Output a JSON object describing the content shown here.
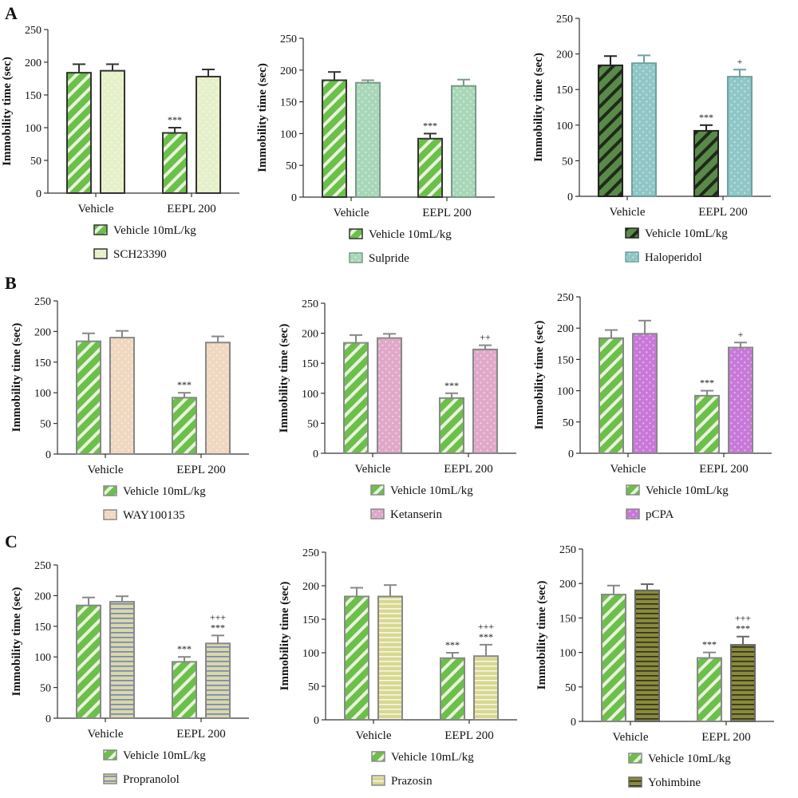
{
  "chart_data": [
    {
      "row": "A",
      "type": "bar",
      "ylabel": "Immobility time (sec)",
      "ylim": [
        0,
        250
      ],
      "categories": [
        "Vehicle",
        "EEPL 200"
      ],
      "series": [
        {
          "name": "Vehicle 10mL/kg",
          "values": [
            184,
            92
          ],
          "errors": [
            13,
            8
          ],
          "fill": "#6cbf4a",
          "stroke": "#333333",
          "pattern": "diag-light"
        },
        {
          "name": "SCH23390",
          "values": [
            187,
            178
          ],
          "errors": [
            10,
            11
          ],
          "fill": "#e6f0c8",
          "stroke": "#333333",
          "pattern": "dots"
        }
      ],
      "annotations": [
        {
          "series": 0,
          "category": 1,
          "text": "***"
        }
      ]
    },
    {
      "row": "A",
      "type": "bar",
      "ylabel": "Immobility time (sec)",
      "ylim": [
        0,
        250
      ],
      "categories": [
        "Vehicle",
        "EEPL 200"
      ],
      "series": [
        {
          "name": "Vehicle 10mL/kg",
          "values": [
            184,
            92
          ],
          "errors": [
            13,
            8
          ],
          "fill": "#6cbf4a",
          "stroke": "#333333",
          "pattern": "diag-light"
        },
        {
          "name": "Sulpride",
          "values": [
            180,
            175
          ],
          "errors": [
            4,
            10
          ],
          "fill": "#a8d7b8",
          "stroke": "#7a9a88",
          "pattern": "dots"
        }
      ],
      "annotations": [
        {
          "series": 0,
          "category": 1,
          "text": "***"
        }
      ]
    },
    {
      "row": "A",
      "type": "bar",
      "ylabel": "Immobility time (sec)",
      "ylim": [
        0,
        250
      ],
      "categories": [
        "Vehicle",
        "EEPL 200"
      ],
      "series": [
        {
          "name": "Vehicle 10mL/kg",
          "values": [
            184,
            92
          ],
          "errors": [
            13,
            8
          ],
          "fill": "#5a8a4a",
          "stroke": "#222222",
          "pattern": "diag-dark"
        },
        {
          "name": "Haloperidol",
          "values": [
            187,
            168
          ],
          "errors": [
            11,
            10
          ],
          "fill": "#8fc6c6",
          "stroke": "#6f9f9f",
          "pattern": "dots"
        }
      ],
      "annotations": [
        {
          "series": 0,
          "category": 1,
          "text": "***"
        },
        {
          "series": 1,
          "category": 1,
          "text": "+"
        }
      ]
    },
    {
      "row": "B",
      "type": "bar",
      "ylabel": "Immobility time (sec)",
      "ylim": [
        0,
        250
      ],
      "categories": [
        "Vehicle",
        "EEPL 200"
      ],
      "series": [
        {
          "name": "Vehicle 10mL/kg",
          "values": [
            184,
            92
          ],
          "errors": [
            13,
            8
          ],
          "fill": "#6cbf4a",
          "stroke": "#888888",
          "pattern": "diag-light"
        },
        {
          "name": "WAY100135",
          "values": [
            190,
            182
          ],
          "errors": [
            11,
            10
          ],
          "fill": "#f0d8c0",
          "stroke": "#888888",
          "pattern": "dots"
        }
      ],
      "annotations": [
        {
          "series": 0,
          "category": 1,
          "text": "***"
        }
      ]
    },
    {
      "row": "B",
      "type": "bar",
      "ylabel": "Immobility time (sec)",
      "ylim": [
        0,
        250
      ],
      "categories": [
        "Vehicle",
        "EEPL 200"
      ],
      "series": [
        {
          "name": "Vehicle 10mL/kg",
          "values": [
            184,
            92
          ],
          "errors": [
            13,
            8
          ],
          "fill": "#6cbf4a",
          "stroke": "#888888",
          "pattern": "diag-light"
        },
        {
          "name": "Ketanserin",
          "values": [
            192,
            173
          ],
          "errors": [
            7,
            7
          ],
          "fill": "#e0a8c8",
          "stroke": "#888888",
          "pattern": "dots"
        }
      ],
      "annotations": [
        {
          "series": 0,
          "category": 1,
          "text": "***"
        },
        {
          "series": 1,
          "category": 1,
          "text": "++"
        }
      ]
    },
    {
      "row": "B",
      "type": "bar",
      "ylabel": "Immobility time (sec)",
      "ylim": [
        0,
        250
      ],
      "categories": [
        "Vehicle",
        "EEPL 200"
      ],
      "series": [
        {
          "name": "Vehicle 10mL/kg",
          "values": [
            184,
            92
          ],
          "errors": [
            13,
            8
          ],
          "fill": "#6cbf4a",
          "stroke": "#888888",
          "pattern": "diag-light"
        },
        {
          "name": "pCPA",
          "values": [
            191,
            169
          ],
          "errors": [
            21,
            8
          ],
          "fill": "#c878d8",
          "stroke": "#888888",
          "pattern": "dots"
        }
      ],
      "annotations": [
        {
          "series": 0,
          "category": 1,
          "text": "***"
        },
        {
          "series": 1,
          "category": 1,
          "text": "+"
        }
      ]
    },
    {
      "row": "C",
      "type": "bar",
      "ylabel": "Immobility time (sec)",
      "ylim": [
        0,
        250
      ],
      "categories": [
        "Vehicle",
        "EEPL 200"
      ],
      "series": [
        {
          "name": "Vehicle 10mL/kg",
          "values": [
            184,
            92
          ],
          "errors": [
            13,
            8
          ],
          "fill": "#6cbf4a",
          "stroke": "#888888",
          "pattern": "diag-light"
        },
        {
          "name": "Propranolol",
          "values": [
            190,
            122
          ],
          "errors": [
            9,
            13
          ],
          "fill": "#d8d8a8",
          "stroke": "#888888",
          "pattern": "hlines-blue"
        }
      ],
      "annotations": [
        {
          "series": 0,
          "category": 1,
          "text": "***"
        },
        {
          "series": 1,
          "category": 1,
          "text": "***"
        },
        {
          "series": 1,
          "category": 1,
          "text": "+++"
        }
      ]
    },
    {
      "row": "C",
      "type": "bar",
      "ylabel": "Immobility time (sec)",
      "ylim": [
        0,
        250
      ],
      "categories": [
        "Vehicle",
        "EEPL 200"
      ],
      "series": [
        {
          "name": "Vehicle 10mL/kg",
          "values": [
            184,
            92
          ],
          "errors": [
            13,
            8
          ],
          "fill": "#6cbf4a",
          "stroke": "#888888",
          "pattern": "diag-light"
        },
        {
          "name": "Prazosin",
          "values": [
            184,
            95
          ],
          "errors": [
            17,
            17
          ],
          "fill": "#d8d890",
          "stroke": "#888888",
          "pattern": "hlines-light"
        }
      ],
      "annotations": [
        {
          "series": 0,
          "category": 1,
          "text": "***"
        },
        {
          "series": 1,
          "category": 1,
          "text": "***"
        },
        {
          "series": 1,
          "category": 1,
          "text": "+++"
        }
      ]
    },
    {
      "row": "C",
      "type": "bar",
      "ylabel": "Immobility time (sec)",
      "ylim": [
        0,
        250
      ],
      "categories": [
        "Vehicle",
        "EEPL 200"
      ],
      "series": [
        {
          "name": "Vehicle 10mL/kg",
          "values": [
            184,
            92
          ],
          "errors": [
            13,
            8
          ],
          "fill": "#6cbf4a",
          "stroke": "#888888",
          "pattern": "diag-light"
        },
        {
          "name": "Yohimbine",
          "values": [
            190,
            111
          ],
          "errors": [
            9,
            12
          ],
          "fill": "#8a8a3a",
          "stroke": "#666666",
          "pattern": "hlines-dark"
        }
      ],
      "annotations": [
        {
          "series": 0,
          "category": 1,
          "text": "***"
        },
        {
          "series": 1,
          "category": 1,
          "text": "***"
        },
        {
          "series": 1,
          "category": 1,
          "text": "+++"
        }
      ]
    }
  ]
}
